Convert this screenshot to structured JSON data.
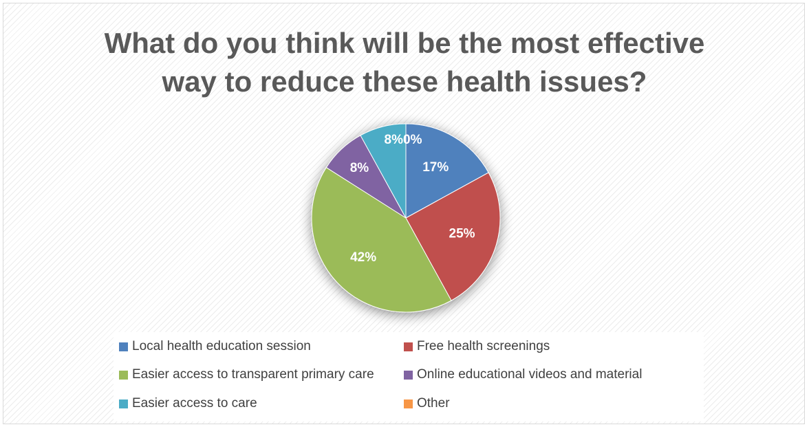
{
  "chart_data": {
    "type": "pie",
    "title": "What do you think will be the most effective way to reduce these health issues?",
    "categories": [
      "Local health education session",
      "Free health screenings",
      "Easier access to transparent primary care",
      "Online educational videos and material",
      "Easier access to care",
      "Other"
    ],
    "values": [
      17,
      25,
      42,
      8,
      8,
      0
    ],
    "data_labels": [
      "17%",
      "25%",
      "42%",
      "8%",
      "8%",
      "0%"
    ],
    "colors": [
      "#4f81bd",
      "#c0504d",
      "#9bbb59",
      "#8064a2",
      "#4bacc6",
      "#f79646"
    ],
    "legend_position": "bottom",
    "start_angle": "top, clockwise"
  }
}
